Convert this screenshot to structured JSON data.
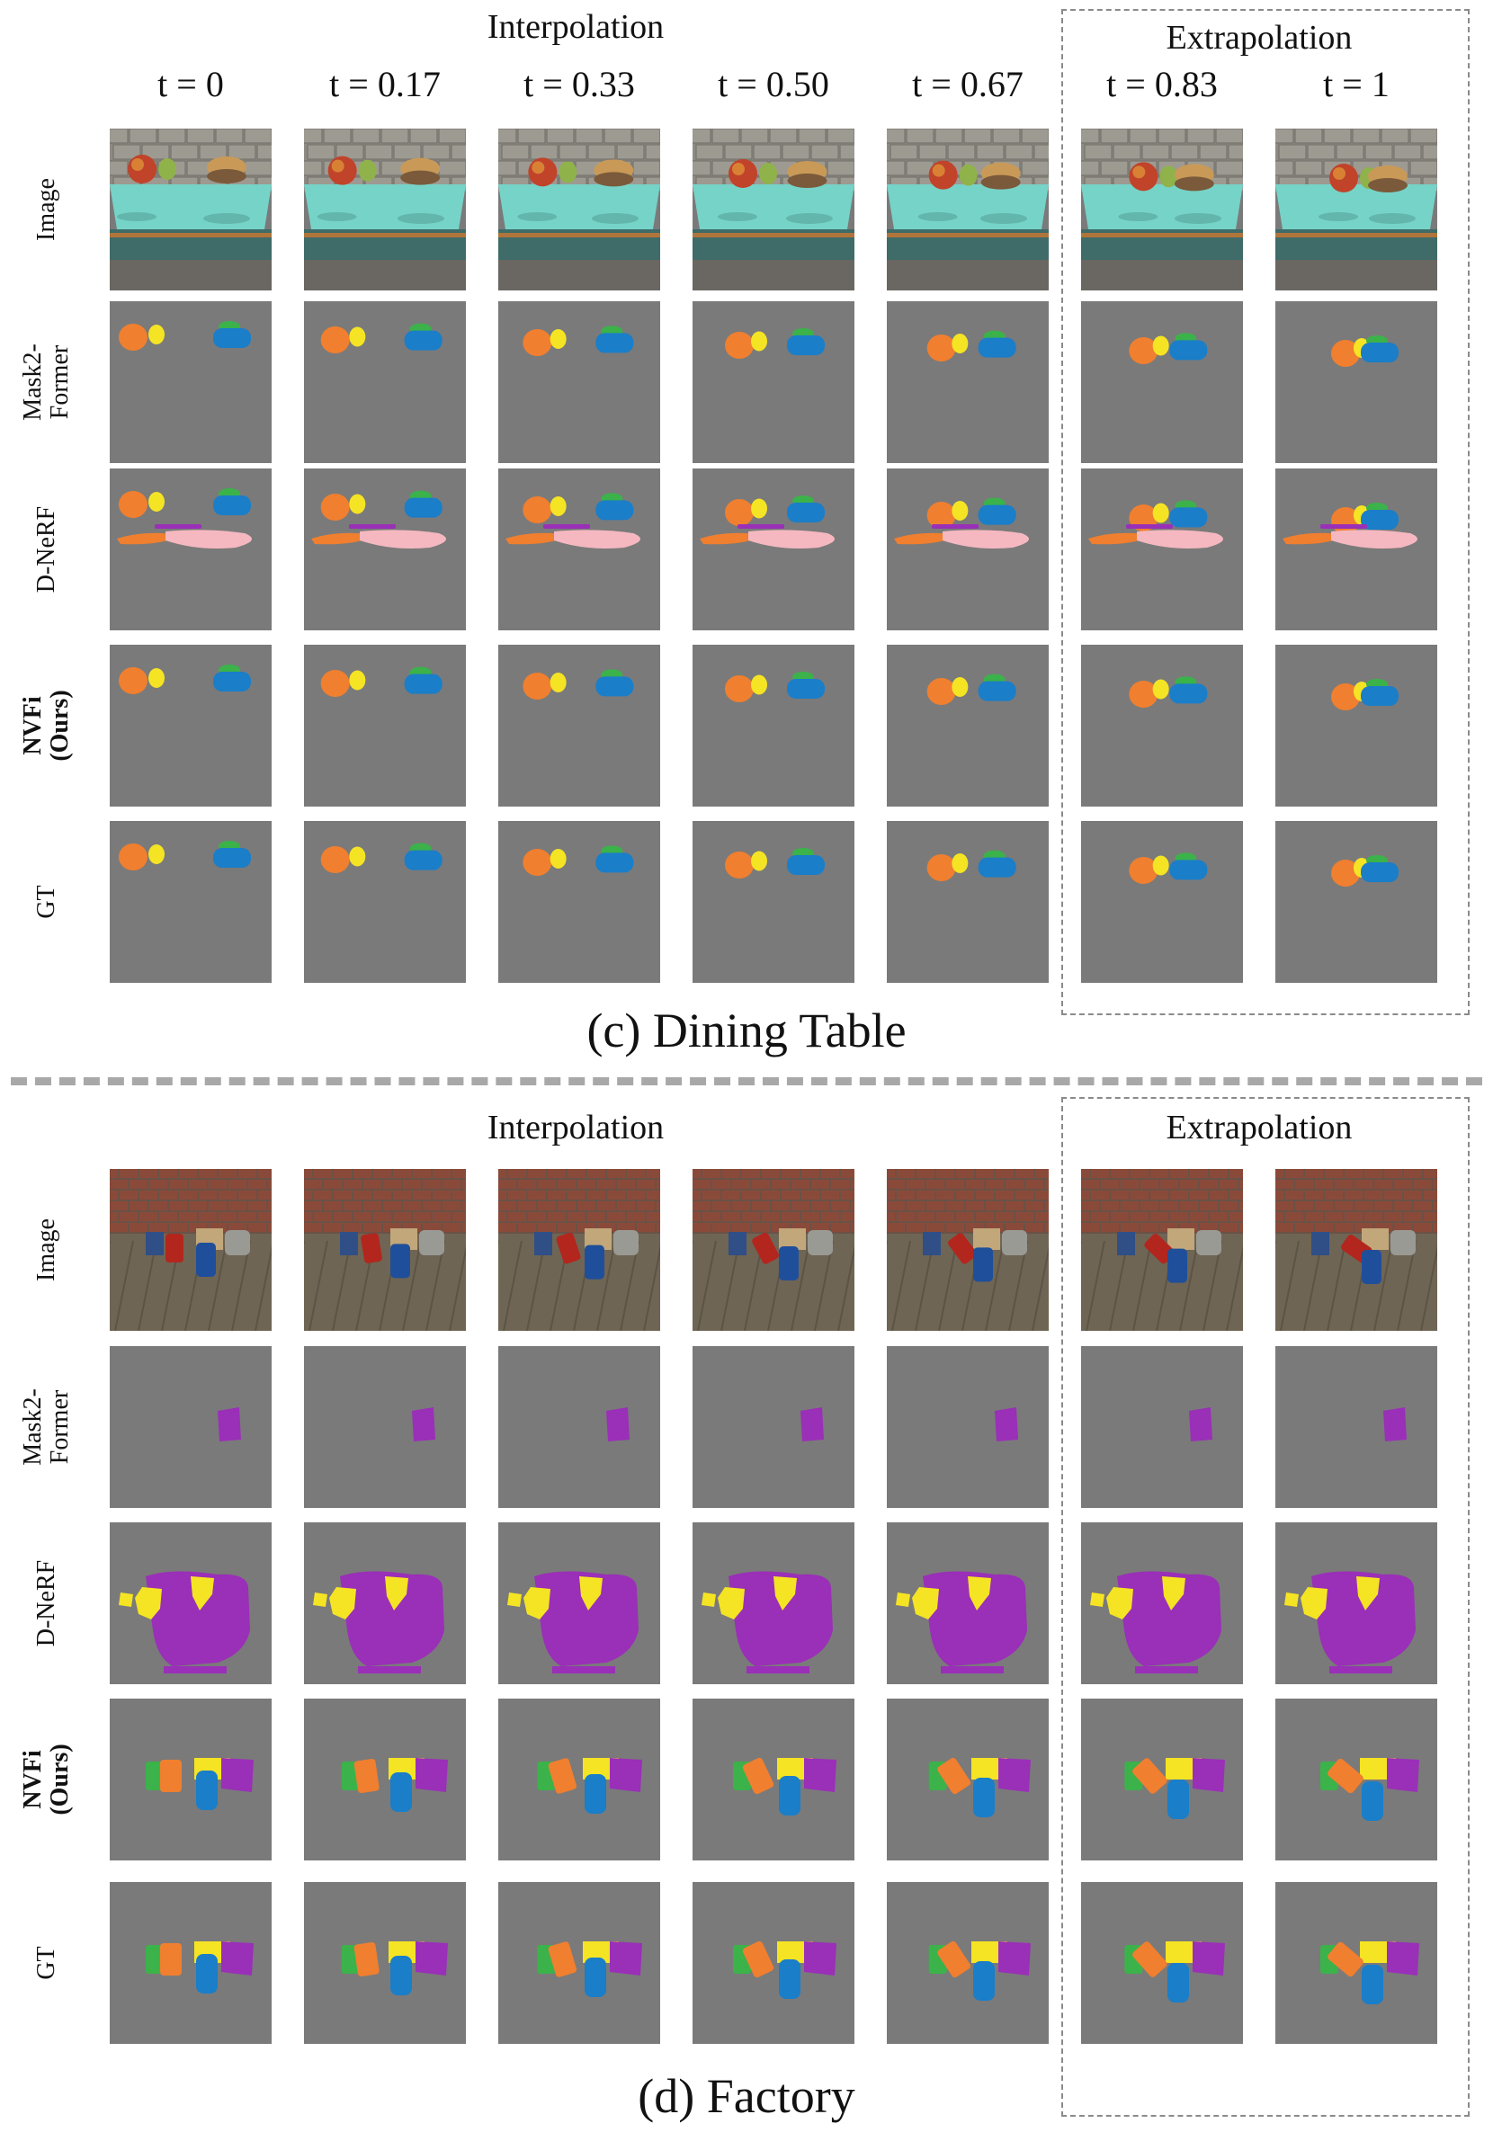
{
  "top": {
    "interpolation_label": "Interpolation",
    "extrapolation_label": "Extrapolation",
    "time_labels": [
      "t = 0",
      "t = 0.17",
      "t = 0.33",
      "t = 0.50",
      "t = 0.67",
      "t = 0.83",
      "t = 1"
    ],
    "row_labels": [
      "Image",
      "Mask2-\nFormer",
      "D-NeRF",
      "NVFi\n(Ours)",
      "GT"
    ],
    "caption": "(c) Dining Table"
  },
  "bottom": {
    "interpolation_label": "Interpolation",
    "extrapolation_label": "Extrapolation",
    "row_labels": [
      "Image",
      "Mask2-\nFormer",
      "D-NeRF",
      "NVFi\n(Ours)",
      "GT"
    ],
    "caption": "(d) Factory"
  },
  "colors": {
    "background_mask": "#7a7a7a",
    "orange": "#f07f2f",
    "yellow": "#f5e424",
    "blue": "#1a7ec9",
    "green": "#3bb24a",
    "purple": "#9a2fb8",
    "pink": "#f5b8c0",
    "separator": "#a8a8a8"
  }
}
